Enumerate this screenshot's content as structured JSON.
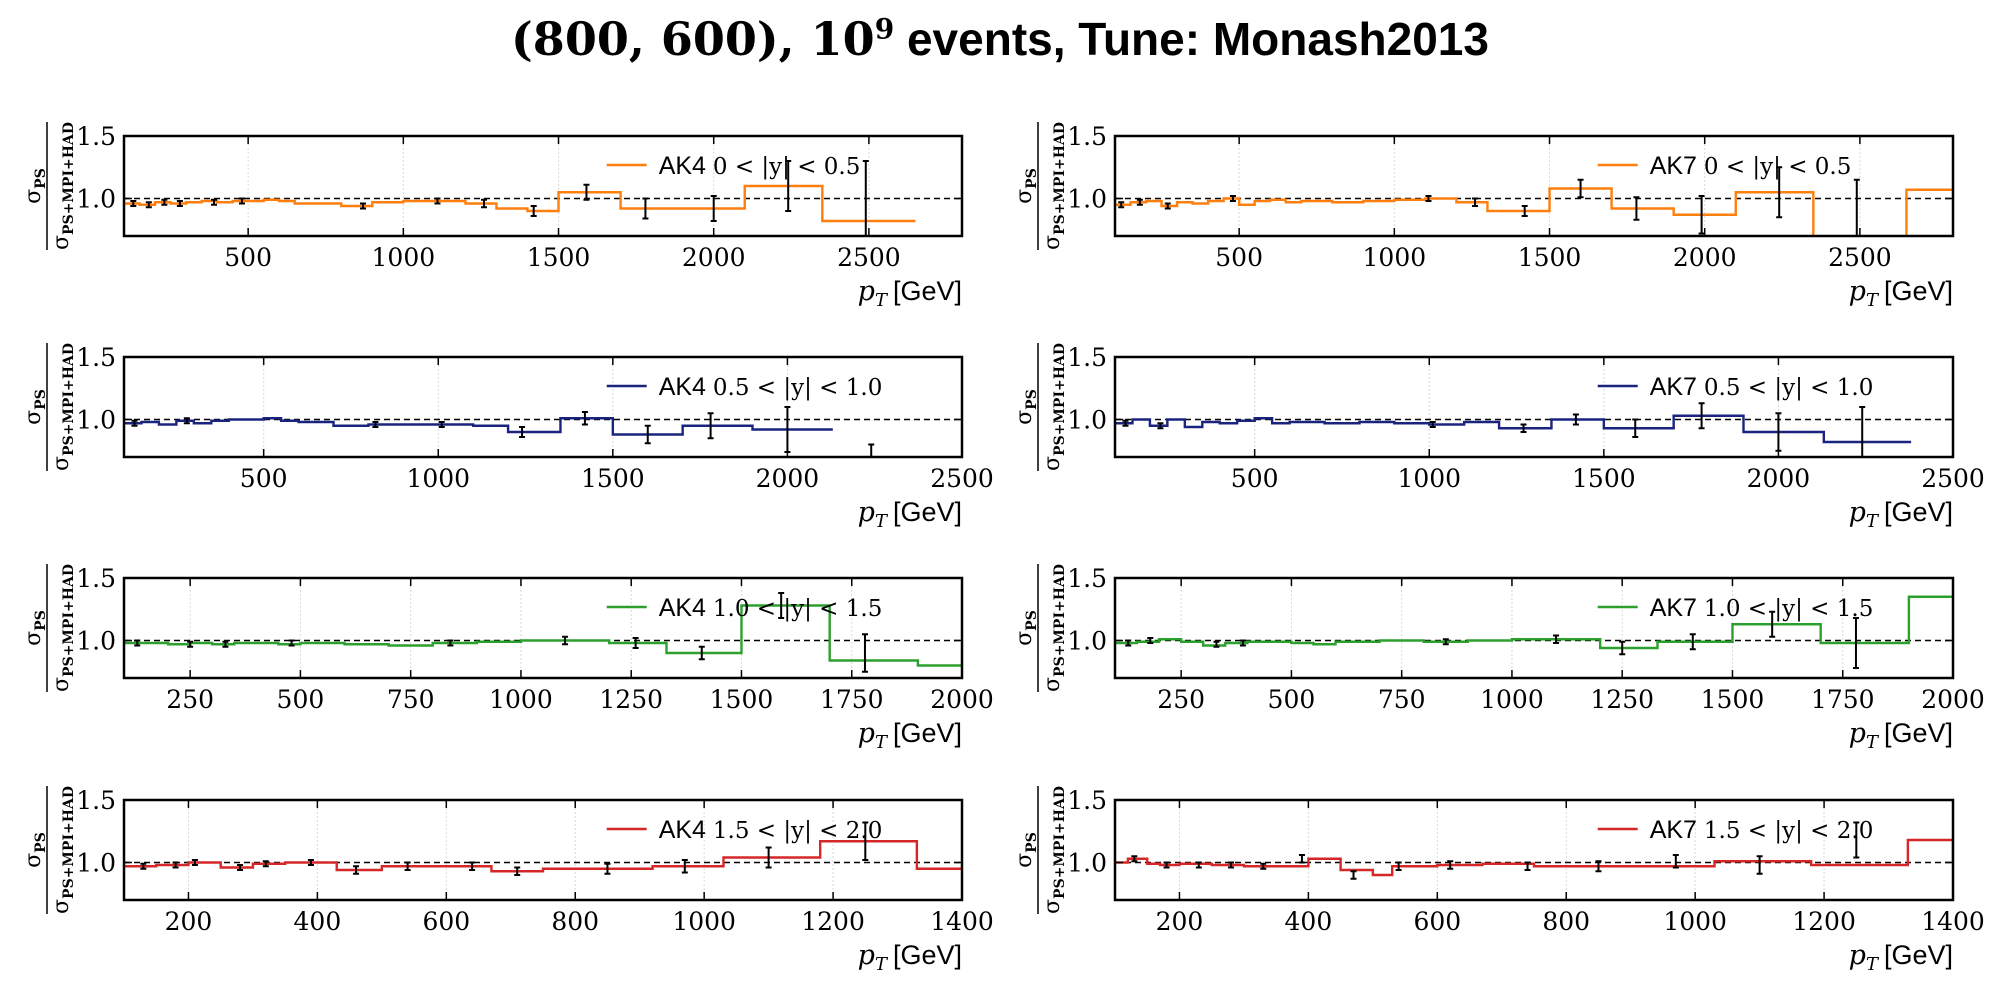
{
  "title": {
    "math": "(800, 600), 10",
    "exponent": "9",
    "rest": " events, Tune: Monash2013"
  },
  "axis_label_x": {
    "italic": "p",
    "sub": "T",
    "unit": "[GeV]"
  },
  "axis_label_y": {
    "numerator": "σ",
    "numerator_sub": "PS",
    "denominator": "σ",
    "denominator_sub": "PS+MPI+HAD"
  },
  "chart_data": [
    {
      "id": "ak4-y0",
      "type": "line",
      "step": true,
      "color": "#ff7f0e",
      "legend_label": "AK4",
      "legend_range": "0 < |y| < 0.5",
      "xlim": [
        100,
        2800
      ],
      "ylim": [
        0.7,
        1.5
      ],
      "xticks": [
        500,
        1000,
        1500,
        2000,
        2500
      ],
      "yticks": [
        1.0,
        1.5
      ],
      "reference_line": 1.0,
      "edges": [
        100,
        150,
        200,
        250,
        300,
        350,
        400,
        450,
        500,
        550,
        600,
        650,
        700,
        800,
        900,
        1000,
        1100,
        1200,
        1300,
        1400,
        1500,
        1700,
        1900,
        2100,
        2350,
        2650
      ],
      "values": [
        0.96,
        0.95,
        0.97,
        0.96,
        0.97,
        0.98,
        0.97,
        0.98,
        0.98,
        0.99,
        0.98,
        0.96,
        0.96,
        0.94,
        0.97,
        0.98,
        0.98,
        0.96,
        0.92,
        0.9,
        1.05,
        0.92,
        0.92,
        1.1,
        0.82
      ],
      "error_bars": [
        {
          "x": 130,
          "y": 0.96,
          "err": 0.02
        },
        {
          "x": 180,
          "y": 0.95,
          "err": 0.02
        },
        {
          "x": 230,
          "y": 0.97,
          "err": 0.02
        },
        {
          "x": 280,
          "y": 0.96,
          "err": 0.02
        },
        {
          "x": 390,
          "y": 0.97,
          "err": 0.02
        },
        {
          "x": 480,
          "y": 0.98,
          "err": 0.02
        },
        {
          "x": 870,
          "y": 0.94,
          "err": 0.02
        },
        {
          "x": 1110,
          "y": 0.98,
          "err": 0.02
        },
        {
          "x": 1260,
          "y": 0.96,
          "err": 0.03
        },
        {
          "x": 1420,
          "y": 0.9,
          "err": 0.04
        },
        {
          "x": 1590,
          "y": 1.05,
          "err": 0.06
        },
        {
          "x": 1780,
          "y": 0.92,
          "err": 0.08
        },
        {
          "x": 2000,
          "y": 0.92,
          "err": 0.1
        },
        {
          "x": 2240,
          "y": 1.1,
          "err": 0.2
        },
        {
          "x": 2490,
          "y": 1.0,
          "err": 0.3
        }
      ]
    },
    {
      "id": "ak7-y0",
      "type": "line",
      "step": true,
      "color": "#ff7f0e",
      "legend_label": "AK7",
      "legend_range": "0 < |y| < 0.5",
      "xlim": [
        100,
        2800
      ],
      "ylim": [
        0.7,
        1.5
      ],
      "xticks": [
        500,
        1000,
        1500,
        2000,
        2500
      ],
      "yticks": [
        1.0,
        1.5
      ],
      "reference_line": 1.0,
      "edges": [
        100,
        150,
        200,
        250,
        300,
        350,
        400,
        450,
        500,
        550,
        600,
        650,
        700,
        800,
        900,
        1000,
        1100,
        1200,
        1300,
        1400,
        1500,
        1700,
        1900,
        2100,
        2350,
        2650,
        2800
      ],
      "values": [
        0.95,
        0.97,
        0.98,
        0.94,
        0.97,
        0.96,
        0.98,
        1.0,
        0.95,
        0.98,
        0.99,
        0.97,
        0.98,
        0.97,
        0.98,
        0.99,
        1.0,
        0.97,
        0.9,
        0.9,
        1.08,
        0.92,
        0.87,
        1.05,
        0.5,
        1.07
      ],
      "error_bars": [
        {
          "x": 120,
          "y": 0.95,
          "err": 0.02
        },
        {
          "x": 180,
          "y": 0.97,
          "err": 0.02
        },
        {
          "x": 270,
          "y": 0.94,
          "err": 0.02
        },
        {
          "x": 480,
          "y": 1.0,
          "err": 0.02
        },
        {
          "x": 1110,
          "y": 1.0,
          "err": 0.02
        },
        {
          "x": 1260,
          "y": 0.97,
          "err": 0.03
        },
        {
          "x": 1420,
          "y": 0.9,
          "err": 0.04
        },
        {
          "x": 1600,
          "y": 1.08,
          "err": 0.07
        },
        {
          "x": 1780,
          "y": 0.92,
          "err": 0.09
        },
        {
          "x": 1990,
          "y": 0.87,
          "err": 0.15
        },
        {
          "x": 2240,
          "y": 1.05,
          "err": 0.2
        },
        {
          "x": 2490,
          "y": 0.85,
          "err": 0.3
        }
      ]
    },
    {
      "id": "ak4-y1",
      "type": "line",
      "step": true,
      "color": "#1a237e",
      "legend_label": "AK4",
      "legend_range": "0.5 < |y| < 1.0",
      "xlim": [
        100,
        2500
      ],
      "ylim": [
        0.7,
        1.5
      ],
      "xticks": [
        500,
        1000,
        1500,
        2000,
        2500
      ],
      "yticks": [
        1.0,
        1.5
      ],
      "reference_line": 1.0,
      "edges": [
        100,
        150,
        200,
        250,
        300,
        350,
        400,
        450,
        500,
        550,
        600,
        700,
        800,
        900,
        1000,
        1100,
        1200,
        1350,
        1500,
        1700,
        1900,
        2130
      ],
      "values": [
        0.97,
        0.98,
        0.96,
        0.99,
        0.97,
        0.99,
        1.0,
        1.0,
        1.01,
        0.99,
        0.98,
        0.95,
        0.96,
        0.96,
        0.96,
        0.95,
        0.9,
        1.01,
        0.88,
        0.95,
        0.92
      ],
      "error_bars": [
        {
          "x": 130,
          "y": 0.97,
          "err": 0.02
        },
        {
          "x": 280,
          "y": 0.99,
          "err": 0.02
        },
        {
          "x": 820,
          "y": 0.96,
          "err": 0.02
        },
        {
          "x": 1010,
          "y": 0.96,
          "err": 0.02
        },
        {
          "x": 1240,
          "y": 0.9,
          "err": 0.04
        },
        {
          "x": 1420,
          "y": 1.01,
          "err": 0.05
        },
        {
          "x": 1600,
          "y": 0.88,
          "err": 0.07
        },
        {
          "x": 1780,
          "y": 0.95,
          "err": 0.1
        },
        {
          "x": 2000,
          "y": 0.92,
          "err": 0.18
        },
        {
          "x": 2240,
          "y": 0.75,
          "err": 0.05
        }
      ]
    },
    {
      "id": "ak7-y1",
      "type": "line",
      "step": true,
      "color": "#1a237e",
      "legend_label": "AK7",
      "legend_range": "0.5 < |y| < 1.0",
      "xlim": [
        100,
        2500
      ],
      "ylim": [
        0.7,
        1.5
      ],
      "xticks": [
        500,
        1000,
        1500,
        2000,
        2500
      ],
      "yticks": [
        1.0,
        1.5
      ],
      "reference_line": 1.0,
      "edges": [
        100,
        150,
        200,
        250,
        300,
        350,
        400,
        450,
        500,
        550,
        600,
        700,
        800,
        900,
        1000,
        1100,
        1200,
        1350,
        1500,
        1700,
        1900,
        2130,
        2380
      ],
      "values": [
        0.97,
        1.0,
        0.95,
        1.0,
        0.94,
        0.98,
        0.97,
        0.99,
        1.01,
        0.97,
        0.98,
        0.97,
        0.98,
        0.97,
        0.96,
        0.98,
        0.93,
        1.0,
        0.93,
        1.03,
        0.9,
        0.82
      ],
      "error_bars": [
        {
          "x": 130,
          "y": 0.97,
          "err": 0.02
        },
        {
          "x": 230,
          "y": 0.95,
          "err": 0.02
        },
        {
          "x": 1010,
          "y": 0.96,
          "err": 0.02
        },
        {
          "x": 1270,
          "y": 0.93,
          "err": 0.03
        },
        {
          "x": 1420,
          "y": 1.0,
          "err": 0.04
        },
        {
          "x": 1590,
          "y": 0.93,
          "err": 0.07
        },
        {
          "x": 1780,
          "y": 1.03,
          "err": 0.1
        },
        {
          "x": 2000,
          "y": 0.9,
          "err": 0.15
        },
        {
          "x": 2240,
          "y": 0.9,
          "err": 0.2
        }
      ]
    },
    {
      "id": "ak4-y2",
      "type": "line",
      "step": true,
      "color": "#2ca02c",
      "legend_label": "AK4",
      "legend_range": "1.0 < |y| < 1.5",
      "xlim": [
        100,
        2000
      ],
      "ylim": [
        0.7,
        1.5
      ],
      "xticks": [
        250,
        500,
        750,
        1000,
        1250,
        1500,
        1750,
        2000
      ],
      "yticks": [
        1.0,
        1.5
      ],
      "reference_line": 1.0,
      "edges": [
        100,
        150,
        200,
        250,
        300,
        350,
        400,
        450,
        500,
        550,
        600,
        700,
        800,
        900,
        1000,
        1100,
        1200,
        1330,
        1500,
        1700,
        1900,
        2000
      ],
      "values": [
        0.98,
        0.98,
        0.97,
        0.98,
        0.97,
        0.98,
        0.98,
        0.97,
        0.98,
        0.98,
        0.97,
        0.96,
        0.98,
        0.99,
        1.0,
        1.0,
        0.98,
        0.9,
        1.28,
        0.84,
        0.8
      ],
      "error_bars": [
        {
          "x": 130,
          "y": 0.98,
          "err": 0.02
        },
        {
          "x": 250,
          "y": 0.97,
          "err": 0.02
        },
        {
          "x": 330,
          "y": 0.97,
          "err": 0.02
        },
        {
          "x": 480,
          "y": 0.98,
          "err": 0.02
        },
        {
          "x": 840,
          "y": 0.98,
          "err": 0.02
        },
        {
          "x": 1100,
          "y": 1.0,
          "err": 0.03
        },
        {
          "x": 1260,
          "y": 0.98,
          "err": 0.04
        },
        {
          "x": 1410,
          "y": 0.9,
          "err": 0.05
        },
        {
          "x": 1590,
          "y": 1.28,
          "err": 0.1
        },
        {
          "x": 1780,
          "y": 0.9,
          "err": 0.15
        }
      ]
    },
    {
      "id": "ak7-y2",
      "type": "line",
      "step": true,
      "color": "#2ca02c",
      "legend_label": "AK7",
      "legend_range": "1.0 < |y| < 1.5",
      "xlim": [
        100,
        2000
      ],
      "ylim": [
        0.7,
        1.5
      ],
      "xticks": [
        250,
        500,
        750,
        1000,
        1250,
        1500,
        1750,
        2000
      ],
      "yticks": [
        1.0,
        1.5
      ],
      "reference_line": 1.0,
      "edges": [
        100,
        150,
        200,
        250,
        300,
        350,
        400,
        450,
        500,
        550,
        600,
        700,
        800,
        900,
        1000,
        1100,
        1200,
        1330,
        1500,
        1700,
        1900,
        2000
      ],
      "values": [
        0.98,
        0.99,
        1.01,
        0.99,
        0.96,
        0.98,
        0.99,
        0.99,
        0.98,
        0.97,
        0.99,
        1.0,
        0.99,
        1.0,
        1.01,
        1.01,
        0.94,
        0.99,
        1.13,
        0.98,
        1.35
      ],
      "error_bars": [
        {
          "x": 130,
          "y": 0.98,
          "err": 0.02
        },
        {
          "x": 180,
          "y": 1.0,
          "err": 0.02
        },
        {
          "x": 330,
          "y": 0.97,
          "err": 0.02
        },
        {
          "x": 390,
          "y": 0.98,
          "err": 0.02
        },
        {
          "x": 850,
          "y": 0.99,
          "err": 0.02
        },
        {
          "x": 1100,
          "y": 1.01,
          "err": 0.03
        },
        {
          "x": 1250,
          "y": 0.94,
          "err": 0.05
        },
        {
          "x": 1410,
          "y": 0.99,
          "err": 0.06
        },
        {
          "x": 1590,
          "y": 1.13,
          "err": 0.1
        },
        {
          "x": 1780,
          "y": 0.98,
          "err": 0.2
        }
      ]
    },
    {
      "id": "ak4-y3",
      "type": "line",
      "step": true,
      "color": "#d62728",
      "legend_label": "AK4",
      "legend_range": "1.5 < |y| < 2.0",
      "xlim": [
        100,
        1400
      ],
      "ylim": [
        0.7,
        1.5
      ],
      "xticks": [
        200,
        400,
        600,
        800,
        1000,
        1200,
        1400
      ],
      "yticks": [
        1.0,
        1.5
      ],
      "reference_line": 1.0,
      "edges": [
        100,
        150,
        200,
        250,
        300,
        350,
        400,
        430,
        500,
        600,
        670,
        750,
        850,
        920,
        1030,
        1180,
        1330,
        1400
      ],
      "values": [
        0.97,
        0.98,
        1.0,
        0.96,
        0.99,
        1.0,
        1.0,
        0.94,
        0.97,
        0.97,
        0.93,
        0.95,
        0.95,
        0.97,
        1.04,
        1.17,
        0.95
      ],
      "error_bars": [
        {
          "x": 130,
          "y": 0.97,
          "err": 0.02
        },
        {
          "x": 180,
          "y": 0.98,
          "err": 0.02
        },
        {
          "x": 210,
          "y": 1.0,
          "err": 0.02
        },
        {
          "x": 280,
          "y": 0.96,
          "err": 0.02
        },
        {
          "x": 320,
          "y": 0.99,
          "err": 0.02
        },
        {
          "x": 390,
          "y": 1.0,
          "err": 0.02
        },
        {
          "x": 460,
          "y": 0.94,
          "err": 0.03
        },
        {
          "x": 540,
          "y": 0.97,
          "err": 0.03
        },
        {
          "x": 640,
          "y": 0.97,
          "err": 0.03
        },
        {
          "x": 710,
          "y": 0.93,
          "err": 0.03
        },
        {
          "x": 850,
          "y": 0.95,
          "err": 0.04
        },
        {
          "x": 970,
          "y": 0.97,
          "err": 0.05
        },
        {
          "x": 1100,
          "y": 1.04,
          "err": 0.08
        },
        {
          "x": 1250,
          "y": 1.17,
          "err": 0.15
        }
      ]
    },
    {
      "id": "ak7-y3",
      "type": "line",
      "step": true,
      "color": "#d62728",
      "legend_label": "AK7",
      "legend_range": "1.5 < |y| < 2.0",
      "xlim": [
        100,
        1400
      ],
      "ylim": [
        0.7,
        1.5
      ],
      "xticks": [
        200,
        400,
        600,
        800,
        1000,
        1200,
        1400
      ],
      "yticks": [
        1.0,
        1.5
      ],
      "reference_line": 1.0,
      "edges": [
        100,
        120,
        150,
        170,
        200,
        250,
        300,
        350,
        400,
        450,
        500,
        530,
        600,
        670,
        750,
        850,
        920,
        1030,
        1180,
        1330,
        1400
      ],
      "values": [
        1.0,
        1.03,
        0.99,
        0.98,
        0.99,
        0.98,
        0.97,
        0.97,
        1.03,
        0.94,
        0.9,
        0.97,
        0.98,
        0.99,
        0.97,
        0.97,
        0.97,
        1.01,
        0.98,
        1.18,
        0.99
      ],
      "error_bars": [
        {
          "x": 130,
          "y": 1.03,
          "err": 0.02
        },
        {
          "x": 180,
          "y": 0.98,
          "err": 0.02
        },
        {
          "x": 230,
          "y": 0.98,
          "err": 0.02
        },
        {
          "x": 280,
          "y": 0.98,
          "err": 0.02
        },
        {
          "x": 330,
          "y": 0.97,
          "err": 0.02
        },
        {
          "x": 390,
          "y": 1.03,
          "err": 0.03
        },
        {
          "x": 470,
          "y": 0.9,
          "err": 0.03
        },
        {
          "x": 540,
          "y": 0.97,
          "err": 0.03
        },
        {
          "x": 620,
          "y": 0.98,
          "err": 0.03
        },
        {
          "x": 740,
          "y": 0.97,
          "err": 0.03
        },
        {
          "x": 850,
          "y": 0.97,
          "err": 0.04
        },
        {
          "x": 970,
          "y": 1.01,
          "err": 0.05
        },
        {
          "x": 1100,
          "y": 0.98,
          "err": 0.07
        },
        {
          "x": 1250,
          "y": 1.18,
          "err": 0.14
        }
      ]
    }
  ]
}
